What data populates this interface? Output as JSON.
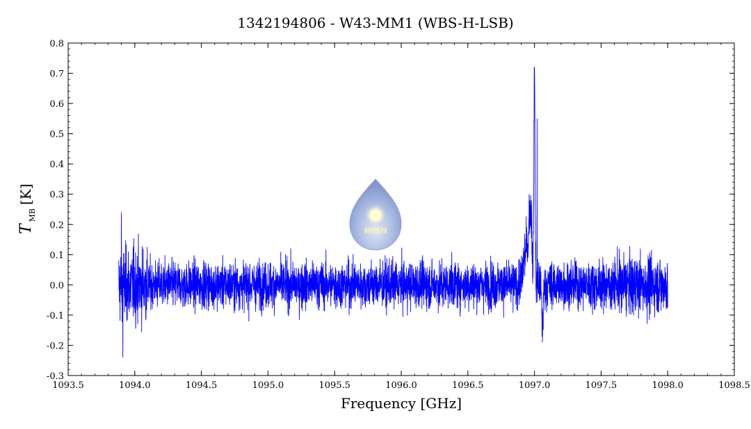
{
  "chart_data": {
    "type": "line",
    "title": "1342194806 - W43-MM1 (WBS-H-LSB)",
    "xlabel": "Frequency [GHz]",
    "ylabel_main": "T",
    "ylabel_sub": "MB",
    "ylabel_unit": "[K]",
    "xlim": [
      1093.5,
      1098.5
    ],
    "ylim": [
      -0.3,
      0.8
    ],
    "xticks": [
      1093.5,
      1094.0,
      1094.5,
      1095.0,
      1095.5,
      1096.0,
      1096.5,
      1097.0,
      1097.5,
      1098.0,
      1098.5
    ],
    "xtick_labels": [
      "1093.5",
      "1094.0",
      "1094.5",
      "1095.0",
      "1095.5",
      "1096.0",
      "1096.5",
      "1097.0",
      "1097.5",
      "1098.0",
      "1098.5"
    ],
    "yticks": [
      -0.3,
      -0.2,
      -0.1,
      0.0,
      0.1,
      0.2,
      0.3,
      0.4,
      0.5,
      0.6,
      0.7,
      0.8
    ],
    "ytick_labels": [
      "-0.3",
      "-0.2",
      "-0.1",
      "0.0",
      "0.1",
      "0.2",
      "0.3",
      "0.4",
      "0.5",
      "0.6",
      "0.7",
      "0.8"
    ],
    "grid": false,
    "series": [
      {
        "color": "#0000ff",
        "x_range": [
          1093.88,
          1098.0
        ],
        "noise_rms": 0.045,
        "features": [
          {
            "x": 1093.9,
            "y": 0.24
          },
          {
            "x": 1093.91,
            "y": -0.24
          },
          {
            "x": 1096.96,
            "y": 0.3
          },
          {
            "x": 1096.98,
            "y": 0.28
          },
          {
            "x": 1097.0,
            "y": 0.72
          },
          {
            "x": 1097.02,
            "y": 0.55
          },
          {
            "x": 1097.06,
            "y": -0.19
          }
        ]
      }
    ],
    "logo": {
      "text": "WISH",
      "position": "center"
    }
  }
}
